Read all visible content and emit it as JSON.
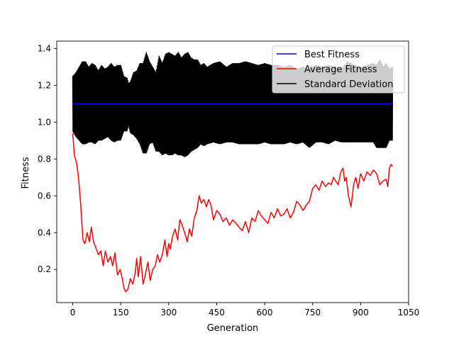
{
  "chart_data": {
    "type": "line",
    "title": "",
    "xlabel": "Generation",
    "ylabel": "Fitness",
    "xlim": [
      -50,
      1050
    ],
    "ylim": [
      0.02,
      1.44
    ],
    "xticks": [
      0,
      150,
      300,
      450,
      600,
      750,
      900,
      1050
    ],
    "yticks": [
      0.2,
      0.4,
      0.6,
      0.8,
      1.0,
      1.2,
      1.4
    ],
    "xtick_labels": [
      "0",
      "150",
      "300",
      "450",
      "600",
      "750",
      "900",
      "1050"
    ],
    "ytick_labels": [
      "0.2",
      "0.4",
      "0.6",
      "0.8",
      "1.0",
      "1.2",
      "1.4"
    ],
    "grid": false,
    "legend_position": "top-right",
    "legend": [
      "Best Fitness",
      "Average Fitness",
      "Standard Deviation"
    ],
    "series": [
      {
        "name": "Best Fitness",
        "color": "#0000ff",
        "x": [
          0,
          1000
        ],
        "y": [
          1.1,
          1.1
        ]
      },
      {
        "name": "Average Fitness",
        "color": "#ff0000",
        "x": [
          0,
          5,
          12,
          18,
          25,
          32,
          38,
          45,
          52,
          58,
          65,
          72,
          80,
          88,
          95,
          102,
          110,
          118,
          125,
          132,
          140,
          148,
          155,
          160,
          165,
          172,
          180,
          188,
          195,
          200,
          205,
          212,
          220,
          228,
          235,
          242,
          250,
          258,
          265,
          272,
          280,
          288,
          295,
          300,
          305,
          312,
          320,
          328,
          335,
          342,
          350,
          358,
          365,
          372,
          380,
          388,
          395,
          402,
          410,
          418,
          425,
          432,
          440,
          450,
          460,
          470,
          480,
          490,
          500,
          510,
          520,
          530,
          540,
          550,
          560,
          570,
          580,
          590,
          600,
          610,
          620,
          630,
          640,
          650,
          660,
          670,
          680,
          690,
          700,
          710,
          720,
          730,
          740,
          750,
          760,
          770,
          780,
          790,
          800,
          808,
          815,
          822,
          830,
          838,
          845,
          850,
          855,
          862,
          870,
          878,
          885,
          892,
          900,
          910,
          920,
          930,
          940,
          950,
          960,
          970,
          980,
          985,
          990,
          995,
          1000
        ],
        "y": [
          0.94,
          0.82,
          0.78,
          0.7,
          0.55,
          0.36,
          0.34,
          0.4,
          0.35,
          0.43,
          0.35,
          0.32,
          0.28,
          0.3,
          0.22,
          0.3,
          0.24,
          0.27,
          0.22,
          0.29,
          0.17,
          0.2,
          0.15,
          0.1,
          0.08,
          0.09,
          0.15,
          0.12,
          0.18,
          0.26,
          0.16,
          0.27,
          0.12,
          0.18,
          0.24,
          0.14,
          0.2,
          0.22,
          0.28,
          0.24,
          0.28,
          0.36,
          0.27,
          0.34,
          0.31,
          0.38,
          0.42,
          0.36,
          0.47,
          0.44,
          0.4,
          0.35,
          0.42,
          0.38,
          0.48,
          0.52,
          0.6,
          0.56,
          0.58,
          0.54,
          0.58,
          0.55,
          0.47,
          0.52,
          0.5,
          0.46,
          0.48,
          0.44,
          0.47,
          0.45,
          0.43,
          0.41,
          0.46,
          0.4,
          0.48,
          0.46,
          0.52,
          0.49,
          0.47,
          0.45,
          0.51,
          0.48,
          0.53,
          0.49,
          0.5,
          0.53,
          0.48,
          0.51,
          0.57,
          0.55,
          0.52,
          0.55,
          0.57,
          0.64,
          0.66,
          0.63,
          0.68,
          0.65,
          0.67,
          0.66,
          0.7,
          0.68,
          0.66,
          0.73,
          0.75,
          0.68,
          0.7,
          0.6,
          0.54,
          0.66,
          0.7,
          0.64,
          0.72,
          0.68,
          0.73,
          0.71,
          0.74,
          0.72,
          0.66,
          0.68,
          0.69,
          0.65,
          0.75,
          0.77,
          0.76
        ]
      },
      {
        "name": "Standard Deviation",
        "color": "#000000",
        "x": [
          0,
          10,
          20,
          30,
          40,
          50,
          60,
          70,
          80,
          90,
          100,
          110,
          120,
          130,
          140,
          150,
          160,
          170,
          175,
          180,
          190,
          200,
          210,
          220,
          230,
          240,
          250,
          260,
          270,
          280,
          290,
          300,
          310,
          320,
          330,
          340,
          350,
          360,
          370,
          380,
          390,
          400,
          410,
          420,
          440,
          460,
          480,
          500,
          520,
          540,
          560,
          580,
          600,
          620,
          640,
          660,
          680,
          700,
          720,
          740,
          760,
          780,
          800,
          820,
          840,
          860,
          880,
          900,
          920,
          940,
          950,
          960,
          970,
          980,
          990,
          1000
        ],
        "upper": [
          1.25,
          1.27,
          1.3,
          1.33,
          1.33,
          1.3,
          1.32,
          1.31,
          1.28,
          1.31,
          1.29,
          1.3,
          1.32,
          1.3,
          1.31,
          1.31,
          1.25,
          1.24,
          1.21,
          1.22,
          1.27,
          1.28,
          1.32,
          1.32,
          1.38,
          1.33,
          1.3,
          1.27,
          1.36,
          1.32,
          1.37,
          1.38,
          1.37,
          1.36,
          1.38,
          1.35,
          1.37,
          1.38,
          1.35,
          1.34,
          1.34,
          1.31,
          1.32,
          1.3,
          1.32,
          1.33,
          1.3,
          1.32,
          1.32,
          1.33,
          1.32,
          1.31,
          1.32,
          1.31,
          1.31,
          1.3,
          1.31,
          1.29,
          1.3,
          1.29,
          1.31,
          1.3,
          1.31,
          1.3,
          1.29,
          1.33,
          1.31,
          1.3,
          1.31,
          1.32,
          1.31,
          1.34,
          1.3,
          1.32,
          1.29,
          1.3
        ],
        "lower": [
          0.95,
          0.92,
          0.9,
          0.88,
          0.88,
          0.89,
          0.89,
          0.88,
          0.9,
          0.9,
          0.91,
          0.92,
          0.9,
          0.89,
          0.9,
          0.9,
          0.95,
          0.95,
          0.98,
          0.94,
          0.93,
          0.91,
          0.88,
          0.83,
          0.83,
          0.88,
          0.89,
          0.84,
          0.84,
          0.82,
          0.83,
          0.82,
          0.82,
          0.83,
          0.82,
          0.82,
          0.81,
          0.82,
          0.84,
          0.85,
          0.86,
          0.88,
          0.87,
          0.88,
          0.89,
          0.88,
          0.89,
          0.89,
          0.88,
          0.88,
          0.88,
          0.88,
          0.89,
          0.88,
          0.88,
          0.88,
          0.89,
          0.88,
          0.89,
          0.86,
          0.89,
          0.89,
          0.88,
          0.9,
          0.89,
          0.89,
          0.89,
          0.89,
          0.89,
          0.89,
          0.86,
          0.86,
          0.86,
          0.86,
          0.9,
          0.9
        ]
      }
    ]
  }
}
